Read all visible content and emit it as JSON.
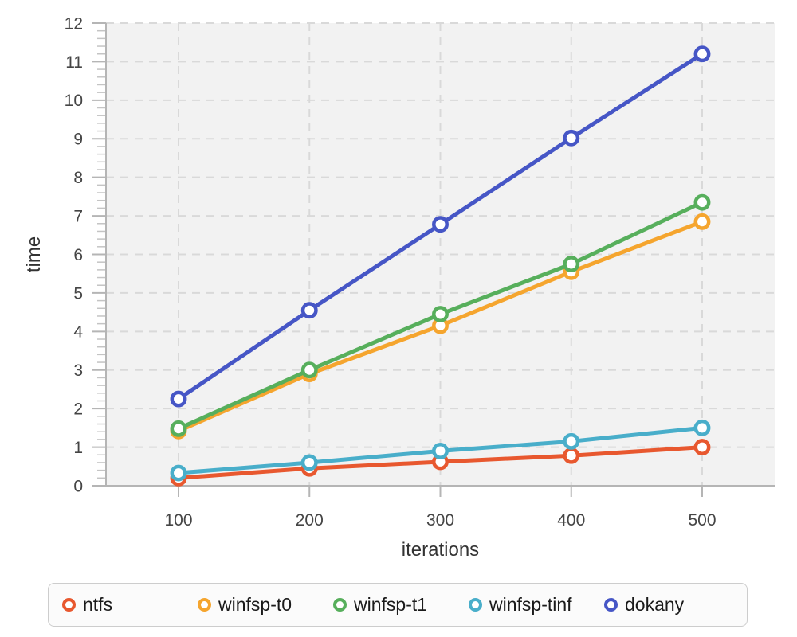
{
  "chart_data": {
    "type": "line",
    "title": "",
    "xlabel": "iterations",
    "ylabel": "time",
    "x": [
      100,
      200,
      300,
      400,
      500
    ],
    "xticks": [
      100,
      200,
      300,
      400,
      500
    ],
    "yticks": [
      0,
      1,
      2,
      3,
      4,
      5,
      6,
      7,
      8,
      9,
      10,
      11,
      12
    ],
    "ylim": [
      0,
      12
    ],
    "xlim_data": [
      100,
      500
    ],
    "grid": "dashed horizontal and vertical gridlines at major ticks, light gray on gray panel",
    "minor_ticks_y_step": 0.2,
    "marker": "open-circle",
    "legend_position": "bottom",
    "series": [
      {
        "name": "ntfs",
        "color": "#e8582f",
        "values": [
          0.2,
          0.45,
          0.62,
          0.78,
          1.0
        ]
      },
      {
        "name": "winfsp-t0",
        "color": "#f5a52e",
        "values": [
          1.42,
          2.9,
          4.15,
          5.55,
          6.85
        ]
      },
      {
        "name": "winfsp-t1",
        "color": "#57af5c",
        "values": [
          1.48,
          3.0,
          4.45,
          5.75,
          7.35
        ]
      },
      {
        "name": "winfsp-tinf",
        "color": "#49aeca",
        "values": [
          0.33,
          0.6,
          0.9,
          1.15,
          1.5
        ]
      },
      {
        "name": "dokany",
        "color": "#4656c6",
        "values": [
          2.25,
          4.55,
          6.78,
          9.02,
          11.2
        ]
      }
    ],
    "style": {
      "plot_background": "#f2f2f2",
      "page_background": "#ffffff",
      "grid_color": "#d9d9d9",
      "axis_color": "#b5b5b5",
      "minor_tick_color": "#c4c4c4",
      "tick_label_color": "#454545",
      "axis_label_color": "#333333",
      "marker_fill": "#ffffff",
      "legend_background": "#fbfbfb",
      "legend_border": "#cdcdcd",
      "legend_text_color": "#1a1a1a"
    }
  }
}
